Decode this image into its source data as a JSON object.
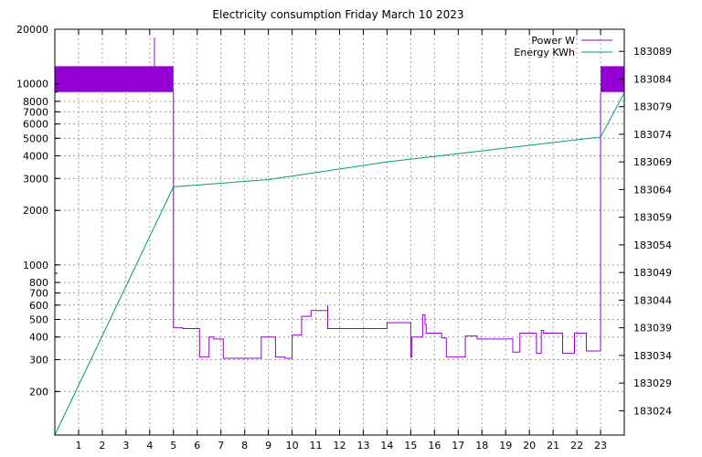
{
  "chart_data": {
    "type": "line",
    "title": "Electricity consumption Friday March 10 2023",
    "xlabel": "",
    "ylabel": "",
    "y2label": "",
    "x_range": [
      0,
      24
    ],
    "x_ticks": [
      1,
      2,
      3,
      4,
      5,
      6,
      7,
      8,
      9,
      10,
      11,
      12,
      13,
      14,
      15,
      16,
      17,
      18,
      19,
      20,
      21,
      22,
      23
    ],
    "y_scale": "log",
    "y_range": [
      115,
      20000
    ],
    "y_ticks": [
      200,
      300,
      400,
      500,
      600,
      700,
      800,
      1000,
      2000,
      3000,
      4000,
      5000,
      6000,
      7000,
      8000,
      10000,
      20000
    ],
    "y2_range": [
      183019.6,
      183093
    ],
    "y2_ticks": [
      183024,
      183029,
      183034,
      183039,
      183044,
      183049,
      183054,
      183059,
      183064,
      183069,
      183074,
      183079,
      183084,
      183089
    ],
    "grid": true,
    "legend_position": "top-right",
    "series": [
      {
        "name": "Power W",
        "axis": "y",
        "color": "#9400d3",
        "band": {
          "ranges": [
            [
              0,
              5.0
            ],
            [
              23.0,
              24
            ]
          ],
          "low": 9000,
          "high": 12500
        },
        "points": [
          [
            4.2,
            12500
          ],
          [
            4.2,
            18000
          ],
          [
            4.2,
            12500
          ],
          [
            5.0,
            9000
          ],
          [
            5.0,
            450
          ],
          [
            5.0,
            450
          ],
          [
            5.4,
            450
          ],
          [
            5.4,
            445
          ],
          [
            6.1,
            445
          ],
          [
            6.1,
            310
          ],
          [
            6.5,
            310
          ],
          [
            6.5,
            400
          ],
          [
            6.7,
            400
          ],
          [
            6.7,
            390
          ],
          [
            7.1,
            390
          ],
          [
            7.1,
            305
          ],
          [
            8.7,
            305
          ],
          [
            8.7,
            400
          ],
          [
            9.3,
            400
          ],
          [
            9.3,
            310
          ],
          [
            9.7,
            310
          ],
          [
            9.7,
            305
          ],
          [
            10.0,
            305
          ],
          [
            10.0,
            410
          ],
          [
            10.4,
            410
          ],
          [
            10.4,
            520
          ],
          [
            10.8,
            520
          ],
          [
            10.8,
            560
          ],
          [
            11.5,
            560
          ],
          [
            11.5,
            600
          ],
          [
            11.5,
            445
          ],
          [
            11.5,
            445
          ],
          [
            14.0,
            445
          ],
          [
            14.0,
            480
          ],
          [
            15.0,
            480
          ],
          [
            15.0,
            310
          ],
          [
            15.05,
            310
          ],
          [
            15.05,
            400
          ],
          [
            15.5,
            400
          ],
          [
            15.5,
            530
          ],
          [
            15.6,
            530
          ],
          [
            15.6,
            470
          ],
          [
            15.65,
            470
          ],
          [
            15.65,
            420
          ],
          [
            16.0,
            420
          ],
          [
            16.0,
            420
          ],
          [
            16.3,
            420
          ],
          [
            16.3,
            395
          ],
          [
            16.5,
            395
          ],
          [
            16.5,
            310
          ],
          [
            17.3,
            310
          ],
          [
            17.3,
            405
          ],
          [
            17.8,
            405
          ],
          [
            17.8,
            390
          ],
          [
            19.3,
            390
          ],
          [
            19.3,
            330
          ],
          [
            19.6,
            330
          ],
          [
            19.6,
            420
          ],
          [
            20.3,
            420
          ],
          [
            20.3,
            325
          ],
          [
            20.5,
            325
          ],
          [
            20.5,
            435
          ],
          [
            20.6,
            435
          ],
          [
            20.6,
            420
          ],
          [
            21.4,
            420
          ],
          [
            21.4,
            325
          ],
          [
            21.9,
            325
          ],
          [
            21.9,
            420
          ],
          [
            22.4,
            420
          ],
          [
            22.4,
            335
          ],
          [
            23.0,
            335
          ],
          [
            23.0,
            9000
          ]
        ]
      },
      {
        "name": "Energy KWh",
        "axis": "y2",
        "color": "#009e73",
        "points": [
          [
            0.0,
            183019.6
          ],
          [
            5.0,
            183064.5
          ],
          [
            9.0,
            183065.8
          ],
          [
            14.0,
            183069.0
          ],
          [
            19.0,
            183071.5
          ],
          [
            23.0,
            183073.5
          ],
          [
            24.0,
            183081.5
          ]
        ]
      }
    ]
  }
}
